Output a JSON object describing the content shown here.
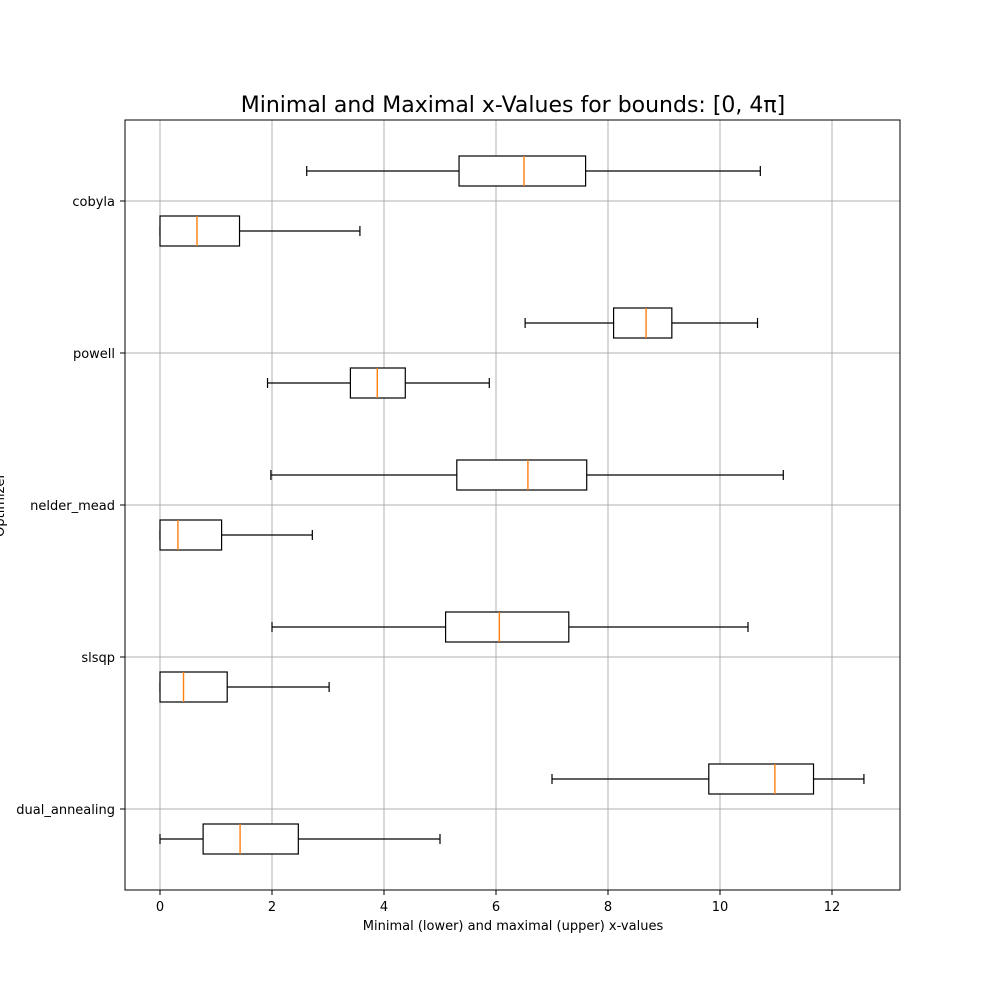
{
  "chart_data": {
    "type": "boxplot",
    "orientation": "horizontal",
    "title": "Minimal and Maximal x-Values for bounds: [0, 4π]",
    "xlabel": "Minimal (lower) and maximal (upper) x-values",
    "ylabel": "Optimizer",
    "xlim": [
      -0.63,
      13.2
    ],
    "xticks": [
      0,
      2,
      4,
      6,
      8,
      10,
      12
    ],
    "grid": true,
    "box_color": "#000000",
    "median_color": "#ff7f0e",
    "grid_color": "#b0b0b0",
    "categories": [
      {
        "name": "dual_annealing",
        "upper": {
          "whisker_low": 7.0,
          "q1": 9.8,
          "median": 10.98,
          "q3": 11.67,
          "whisker_high": 12.57
        },
        "lower": {
          "whisker_low": 0.0,
          "q1": 0.77,
          "median": 1.43,
          "q3": 2.47,
          "whisker_high": 5.0
        }
      },
      {
        "name": "slsqp",
        "upper": {
          "whisker_low": 2.0,
          "q1": 5.1,
          "median": 6.06,
          "q3": 7.3,
          "whisker_high": 10.5
        },
        "lower": {
          "whisker_low": 0.0,
          "q1": 0.0,
          "median": 0.42,
          "q3": 1.2,
          "whisker_high": 3.02
        }
      },
      {
        "name": "nelder_mead",
        "upper": {
          "whisker_low": 1.98,
          "q1": 5.3,
          "median": 6.57,
          "q3": 7.62,
          "whisker_high": 11.13
        },
        "lower": {
          "whisker_low": 0.0,
          "q1": 0.0,
          "median": 0.32,
          "q3": 1.1,
          "whisker_high": 2.72
        }
      },
      {
        "name": "powell",
        "upper": {
          "whisker_low": 6.52,
          "q1": 8.1,
          "median": 8.68,
          "q3": 9.14,
          "whisker_high": 10.67
        },
        "lower": {
          "whisker_low": 1.92,
          "q1": 3.4,
          "median": 3.88,
          "q3": 4.38,
          "whisker_high": 5.88
        }
      },
      {
        "name": "cobyla",
        "upper": {
          "whisker_low": 2.62,
          "q1": 5.34,
          "median": 6.5,
          "q3": 7.6,
          "whisker_high": 10.72
        },
        "lower": {
          "whisker_low": 0.0,
          "q1": 0.0,
          "median": 0.66,
          "q3": 1.42,
          "whisker_high": 3.57
        }
      }
    ]
  }
}
